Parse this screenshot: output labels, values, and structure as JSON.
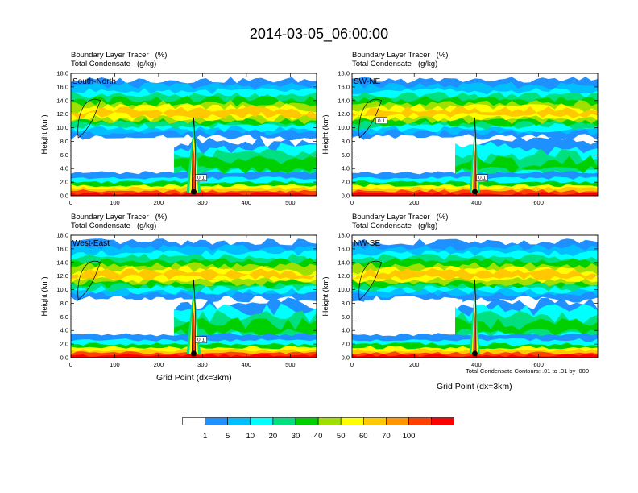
{
  "title": "2014-03-05_06:00:00",
  "subtitle_line1": "Boundary Layer Tracer",
  "subtitle_unit1": "(%)",
  "subtitle_line2": "Total Condensate",
  "subtitle_unit2": "(g/kg)",
  "ylabel": "Height (km)",
  "xlabel": "Grid Point (dx=3km)",
  "contour_note": "Total Condensate Contours: .01 to .01 by .000",
  "legend_labels": [
    "1",
    "5",
    "10",
    "20",
    "30",
    "40",
    "50",
    "60",
    "70",
    "100"
  ],
  "legend_colors": [
    "#ffffff",
    "#1e90ff",
    "#00bfff",
    "#00ffff",
    "#00e080",
    "#00d000",
    "#a0e000",
    "#ffff00",
    "#ffc800",
    "#ff9600",
    "#ff4000",
    "#ff0000"
  ],
  "panels": [
    {
      "label": "South-North",
      "ylim": [
        0,
        18
      ],
      "yticks": [
        "0.0",
        "2.0",
        "4.0",
        "6.0",
        "8.0",
        "10.0",
        "12.0",
        "14.0",
        "16.0",
        "18.0"
      ],
      "xlim": [
        0,
        560
      ],
      "xticks": [
        0,
        100,
        200,
        300,
        400,
        500
      ],
      "marker_x": 280,
      "contour_labels": [
        "0.1"
      ]
    },
    {
      "label": "SW-NE",
      "ylim": [
        0,
        18
      ],
      "yticks": [
        "0.0",
        "2.0",
        "4.0",
        "6.0",
        "8.0",
        "10.0",
        "12.0",
        "14.0",
        "16.0",
        "18.0"
      ],
      "xlim": [
        0,
        790
      ],
      "xticks": [
        0,
        200,
        400,
        600
      ],
      "marker_x": 395,
      "contour_labels": [
        "0.1",
        "0.1"
      ]
    },
    {
      "label": "West-East",
      "ylim": [
        0,
        18
      ],
      "yticks": [
        "0.0",
        "2.0",
        "4.0",
        "6.0",
        "8.0",
        "10.0",
        "12.0",
        "14.0",
        "16.0",
        "18.0"
      ],
      "xlim": [
        0,
        560
      ],
      "xticks": [
        0,
        100,
        200,
        300,
        400,
        500
      ],
      "marker_x": 280,
      "contour_labels": [
        "0.1"
      ]
    },
    {
      "label": "NW-SE",
      "ylim": [
        0,
        18
      ],
      "yticks": [
        "0.0",
        "2.0",
        "4.0",
        "6.0",
        "8.0",
        "10.0",
        "12.0",
        "14.0",
        "16.0",
        "18.0"
      ],
      "xlim": [
        0,
        790
      ],
      "xticks": [
        0,
        200,
        400,
        600
      ],
      "marker_x": 395,
      "contour_labels": []
    }
  ],
  "chart_data": {
    "type": "heatmap",
    "title": "2014-03-05_06:00:00",
    "fields": [
      "Boundary Layer Tracer (%)",
      "Total Condensate (g/kg)"
    ],
    "ylabel": "Height (km)",
    "xlabel": "Grid Point (dx=3km)",
    "color_levels": [
      1,
      5,
      10,
      20,
      30,
      40,
      50,
      60,
      70,
      100
    ],
    "panels": [
      "South-North",
      "SW-NE",
      "West-East",
      "NW-SE"
    ]
  }
}
